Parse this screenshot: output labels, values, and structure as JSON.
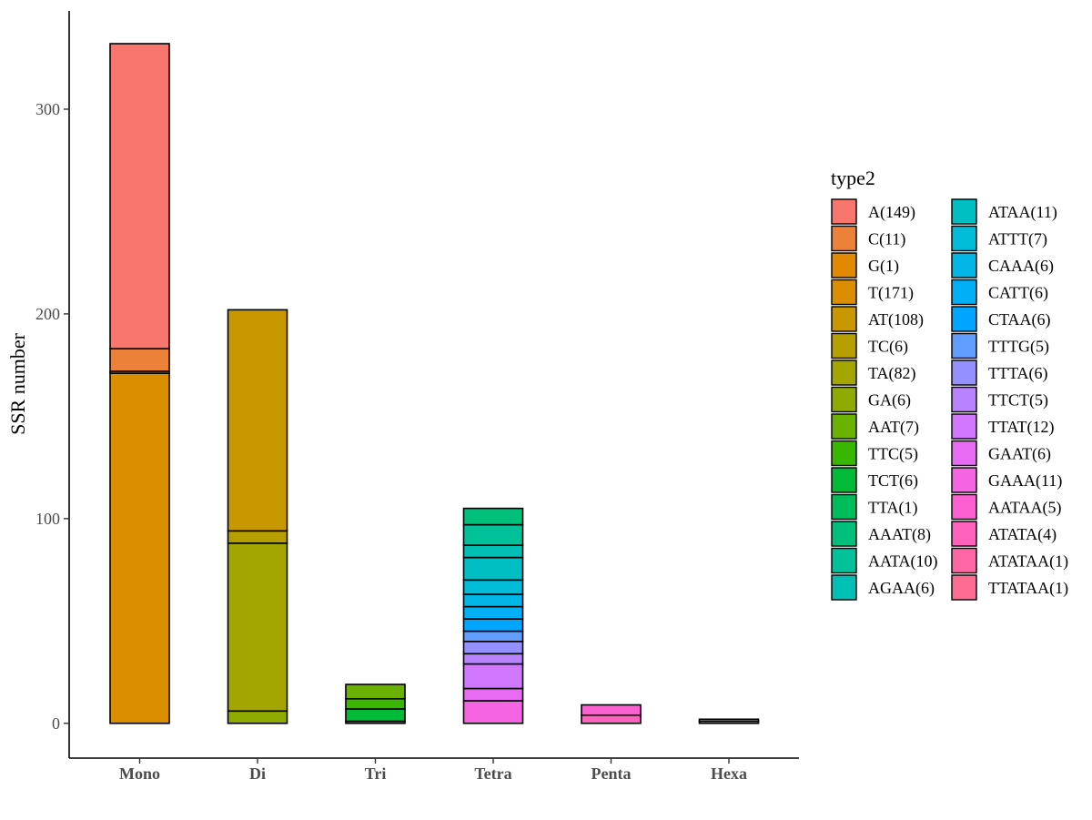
{
  "chart_data": {
    "type": "bar",
    "stacked": true,
    "title": "",
    "xlabel": "",
    "ylabel": "SSR number",
    "ylim": [
      -17,
      348
    ],
    "yticks": [
      0,
      100,
      200,
      300
    ],
    "categories": [
      "Mono",
      "Di",
      "Tri",
      "Tetra",
      "Penta",
      "Hexa"
    ],
    "legend": {
      "title": "type2",
      "position": "right",
      "columns": 2
    },
    "grid": false,
    "series": [
      {
        "name": "A(149)",
        "color": "#F8766D",
        "values": [
          149,
          0,
          0,
          0,
          0,
          0
        ]
      },
      {
        "name": "C(11)",
        "color": "#EC8239",
        "values": [
          11,
          0,
          0,
          0,
          0,
          0
        ]
      },
      {
        "name": "G(1)",
        "color": "#E38900",
        "values": [
          1,
          0,
          0,
          0,
          0,
          0
        ]
      },
      {
        "name": "T(171)",
        "color": "#DB8E00",
        "values": [
          171,
          0,
          0,
          0,
          0,
          0
        ]
      },
      {
        "name": "AT(108)",
        "color": "#C99800",
        "values": [
          0,
          108,
          0,
          0,
          0,
          0
        ]
      },
      {
        "name": "TC(6)",
        "color": "#B79F00",
        "values": [
          0,
          6,
          0,
          0,
          0,
          0
        ]
      },
      {
        "name": "TA(82)",
        "color": "#A3A500",
        "values": [
          0,
          82,
          0,
          0,
          0,
          0
        ]
      },
      {
        "name": "GA(6)",
        "color": "#8FAA00",
        "values": [
          0,
          6,
          0,
          0,
          0,
          0
        ]
      },
      {
        "name": "AAT(7)",
        "color": "#6BB100",
        "values": [
          0,
          0,
          7,
          0,
          0,
          0
        ]
      },
      {
        "name": "TTC(5)",
        "color": "#39B600",
        "values": [
          0,
          0,
          5,
          0,
          0,
          0
        ]
      },
      {
        "name": "TCT(6)",
        "color": "#00BA38",
        "values": [
          0,
          0,
          6,
          0,
          0,
          0
        ]
      },
      {
        "name": "TTA(1)",
        "color": "#00BD5C",
        "values": [
          0,
          0,
          1,
          0,
          0,
          0
        ]
      },
      {
        "name": "AAAT(8)",
        "color": "#00C07B",
        "values": [
          0,
          0,
          0,
          8,
          0,
          0
        ]
      },
      {
        "name": "AATA(10)",
        "color": "#00C19A",
        "values": [
          0,
          0,
          0,
          10,
          0,
          0
        ]
      },
      {
        "name": "AGAA(6)",
        "color": "#00C0B5",
        "values": [
          0,
          0,
          0,
          6,
          0,
          0
        ]
      },
      {
        "name": "ATAA(11)",
        "color": "#00BFC4",
        "values": [
          0,
          0,
          0,
          11,
          0,
          0
        ]
      },
      {
        "name": "ATTT(7)",
        "color": "#00BCD8",
        "values": [
          0,
          0,
          0,
          7,
          0,
          0
        ]
      },
      {
        "name": "CAAA(6)",
        "color": "#00B7E8",
        "values": [
          0,
          0,
          0,
          6,
          0,
          0
        ]
      },
      {
        "name": "CATT(6)",
        "color": "#00B0F6",
        "values": [
          0,
          0,
          0,
          6,
          0,
          0
        ]
      },
      {
        "name": "CTAA(6)",
        "color": "#00A5FF",
        "values": [
          0,
          0,
          0,
          6,
          0,
          0
        ]
      },
      {
        "name": "TTTG(5)",
        "color": "#619CFF",
        "values": [
          0,
          0,
          0,
          5,
          0,
          0
        ]
      },
      {
        "name": "TTTA(6)",
        "color": "#9590FF",
        "values": [
          0,
          0,
          0,
          6,
          0,
          0
        ]
      },
      {
        "name": "TTCT(5)",
        "color": "#B983FF",
        "values": [
          0,
          0,
          0,
          5,
          0,
          0
        ]
      },
      {
        "name": "TTAT(12)",
        "color": "#D277FF",
        "values": [
          0,
          0,
          0,
          12,
          0,
          0
        ]
      },
      {
        "name": "GAAT(6)",
        "color": "#E76BF3",
        "values": [
          0,
          0,
          0,
          6,
          0,
          0
        ]
      },
      {
        "name": "GAAA(11)",
        "color": "#F564E3",
        "values": [
          0,
          0,
          0,
          11,
          0,
          0
        ]
      },
      {
        "name": "AATAA(5)",
        "color": "#FD61D1",
        "values": [
          0,
          0,
          0,
          0,
          5,
          0
        ]
      },
      {
        "name": "ATATA(4)",
        "color": "#FF62BC",
        "values": [
          0,
          0,
          0,
          0,
          4,
          0
        ]
      },
      {
        "name": "ATATAA(1)",
        "color": "#FF67A4",
        "values": [
          0,
          0,
          0,
          0,
          0,
          1
        ]
      },
      {
        "name": "TTATAA(1)",
        "color": "#FF6C91",
        "values": [
          0,
          0,
          0,
          0,
          0,
          1
        ]
      }
    ]
  }
}
